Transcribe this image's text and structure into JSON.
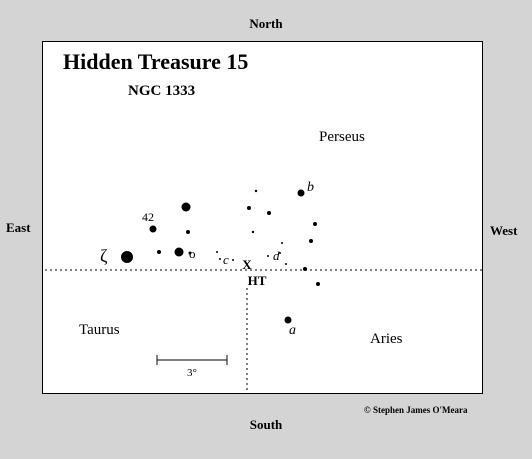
{
  "title": "Hidden Treasure 15",
  "subtitle": "NGC 1333",
  "directions": {
    "north": "North",
    "south": "South",
    "east": "East",
    "west": "West"
  },
  "constellations": {
    "perseus": "Perseus",
    "taurus": "Taurus",
    "aries": "Aries"
  },
  "star_labels": {
    "zeta": "ζ",
    "omicron": "o",
    "n42": "42",
    "b": "b",
    "c": "c",
    "d": "d",
    "a": "a"
  },
  "target": {
    "marker": "X",
    "label": "HT"
  },
  "scale_bar": {
    "label": "3°"
  },
  "copyright": "© Stephen James O'Meara",
  "colors": {
    "background": "#d4d4d4",
    "chart": "#ffffff",
    "ink": "#000000"
  }
}
